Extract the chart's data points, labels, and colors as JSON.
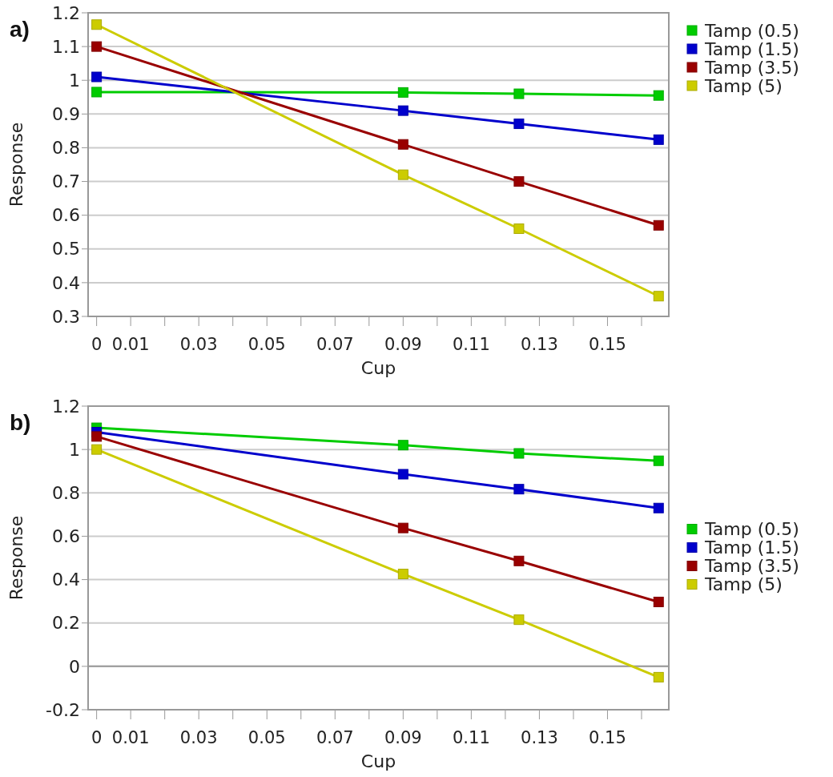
{
  "chart_data": [
    {
      "type": "line",
      "title": "a)",
      "xlabel": "Cup",
      "ylabel": "Response",
      "x": [
        0,
        0.09,
        0.124,
        0.165
      ],
      "xlim": [
        -0.0025,
        0.168
      ],
      "xticks": [
        0,
        0.01,
        {
          "value": 0.02,
          "label": null
        },
        0.03,
        {
          "value": 0.04,
          "label": null
        },
        0.05,
        {
          "value": 0.06,
          "label": null
        },
        0.07,
        {
          "value": 0.08,
          "label": null
        },
        0.09,
        {
          "value": 0.1,
          "label": null
        },
        0.11,
        {
          "value": 0.12,
          "label": null
        },
        0.13,
        {
          "value": 0.14,
          "label": null
        },
        0.15,
        {
          "value": 0.16,
          "label": null
        }
      ],
      "ylim": [
        0.3,
        1.2
      ],
      "yticks": [
        0.3,
        0.4,
        0.5,
        0.6,
        0.7,
        0.8,
        0.9,
        1,
        1.1,
        1.2
      ],
      "grid": "y",
      "legend": "top right",
      "marker": "square",
      "series": [
        {
          "name": "Tamp (0.5)",
          "color": "#00cc00",
          "values": [
            0.965,
            0.964,
            0.96,
            0.955
          ]
        },
        {
          "name": "Tamp (1.5)",
          "color": "#0000cc",
          "values": [
            1.01,
            0.91,
            0.871,
            0.824
          ]
        },
        {
          "name": "Tamp (3.5)",
          "color": "#990000",
          "values": [
            1.1,
            0.81,
            0.7,
            0.57
          ]
        },
        {
          "name": "Tamp (5)",
          "color": "#cccc00",
          "values": [
            1.165,
            0.72,
            0.56,
            0.36
          ]
        }
      ]
    },
    {
      "type": "line",
      "title": "b)",
      "xlabel": "Cup",
      "ylabel": "Response",
      "x": [
        0,
        0.09,
        0.124,
        0.165
      ],
      "xlim": [
        -0.0025,
        0.168
      ],
      "xticks": [
        0,
        0.01,
        {
          "value": 0.02,
          "label": null
        },
        0.03,
        {
          "value": 0.04,
          "label": null
        },
        0.05,
        {
          "value": 0.06,
          "label": null
        },
        0.07,
        {
          "value": 0.08,
          "label": null
        },
        0.09,
        {
          "value": 0.1,
          "label": null
        },
        0.11,
        {
          "value": 0.12,
          "label": null
        },
        0.13,
        {
          "value": 0.14,
          "label": null
        },
        0.15,
        {
          "value": 0.16,
          "label": null
        }
      ],
      "ylim": [
        -0.2,
        1.2
      ],
      "yticks": [
        -0.2,
        0,
        0.2,
        0.4,
        0.6,
        0.8,
        1,
        1.2
      ],
      "grid": "y",
      "legend": "right",
      "marker": "square",
      "ref_lines": [
        {
          "axis": "y",
          "value": 0,
          "color": "#999999"
        }
      ],
      "series": [
        {
          "name": "Tamp (0.5)",
          "color": "#00cc00",
          "values": [
            1.1,
            1.02,
            0.982,
            0.948
          ]
        },
        {
          "name": "Tamp (1.5)",
          "color": "#0000cc",
          "values": [
            1.08,
            0.886,
            0.817,
            0.73
          ]
        },
        {
          "name": "Tamp (3.5)",
          "color": "#990000",
          "values": [
            1.06,
            0.638,
            0.486,
            0.297
          ]
        },
        {
          "name": "Tamp (5)",
          "color": "#cccc00",
          "values": [
            1.0,
            0.426,
            0.215,
            -0.05
          ]
        }
      ]
    }
  ]
}
